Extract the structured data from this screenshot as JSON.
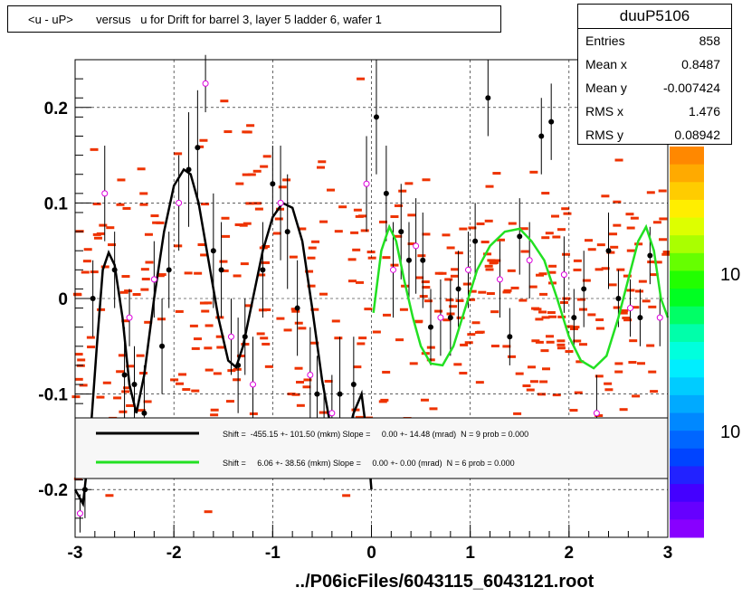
{
  "title": "<u - uP>       versus   u for Drift for barrel 3, layer 5 ladder 6, wafer 1",
  "footer_text": "../P06icFiles/6043115_6043121.root",
  "stats": {
    "name": "duuP5106",
    "rows": [
      {
        "label": "Entries",
        "value": "858"
      },
      {
        "label": "Mean x",
        "value": "0.8487"
      },
      {
        "label": "Mean y",
        "value": "-0.007424"
      },
      {
        "label": "RMS x",
        "value": "1.476"
      },
      {
        "label": "RMS y",
        "value": "0.08942"
      }
    ]
  },
  "colors": {
    "fit_black": "#000000",
    "fit_green": "#22e022",
    "hist_red": "#ee3300",
    "profile_magenta": "#dd00dd",
    "grid": "#000000"
  },
  "chart_data": {
    "type": "scatter",
    "title": "<u - uP>       versus   u for Drift for barrel 3, layer 5 ladder 6, wafer 1",
    "xlim": [
      -3,
      3
    ],
    "ylim": [
      -0.25,
      0.25
    ],
    "x_ticks": [
      "-3",
      "-2",
      "-1",
      "0",
      "1",
      "2",
      "3"
    ],
    "y_ticks": [
      "-0.2",
      "-0.1",
      "0",
      "0.1",
      "0.2"
    ],
    "grid": true,
    "colorbar_labels": [
      "10",
      "10"
    ],
    "legend_entries": [
      {
        "text": "Shift =  -455.15 +- 101.50 (mkm) Slope =     0.00 +- 14.48 (mrad)  N = 9 prob = 0.000",
        "color": "#000000"
      },
      {
        "text": "Shift =     6.06 +- 38.56 (mkm) Slope =     0.00 +- 0.00 (mrad)  N = 6 prob = 0.000",
        "color": "#22e022"
      }
    ],
    "black_fit_points": [
      [
        -3.0,
        -0.2
      ],
      [
        -2.92,
        -0.215
      ],
      [
        -2.85,
        -0.15
      ],
      [
        -2.78,
        -0.05
      ],
      [
        -2.72,
        0.03
      ],
      [
        -2.66,
        0.048
      ],
      [
        -2.6,
        0.035
      ],
      [
        -2.52,
        -0.02
      ],
      [
        -2.45,
        -0.09
      ],
      [
        -2.38,
        -0.12
      ],
      [
        -2.3,
        -0.08
      ],
      [
        -2.2,
        0.0
      ],
      [
        -2.1,
        0.07
      ],
      [
        -2.0,
        0.118
      ],
      [
        -1.9,
        0.135
      ],
      [
        -1.83,
        0.13
      ],
      [
        -1.75,
        0.1
      ],
      [
        -1.65,
        0.04
      ],
      [
        -1.55,
        -0.02
      ],
      [
        -1.45,
        -0.065
      ],
      [
        -1.37,
        -0.072
      ],
      [
        -1.3,
        -0.05
      ],
      [
        -1.2,
        0.0
      ],
      [
        -1.1,
        0.05
      ],
      [
        -1.0,
        0.085
      ],
      [
        -0.9,
        0.1
      ],
      [
        -0.8,
        0.095
      ],
      [
        -0.7,
        0.06
      ],
      [
        -0.6,
        -0.01
      ],
      [
        -0.5,
        -0.085
      ],
      [
        -0.42,
        -0.13
      ],
      [
        -0.34,
        -0.155
      ],
      [
        -0.26,
        -0.15
      ],
      [
        -0.18,
        -0.12
      ],
      [
        -0.1,
        -0.1
      ],
      [
        -0.05,
        -0.14
      ],
      [
        0.0,
        -0.2
      ]
    ],
    "green_fit_points": [
      [
        0.02,
        -0.015
      ],
      [
        0.1,
        0.05
      ],
      [
        0.18,
        0.075
      ],
      [
        0.25,
        0.06
      ],
      [
        0.33,
        0.02
      ],
      [
        0.42,
        -0.02
      ],
      [
        0.5,
        -0.05
      ],
      [
        0.6,
        -0.068
      ],
      [
        0.72,
        -0.07
      ],
      [
        0.83,
        -0.05
      ],
      [
        0.95,
        -0.01
      ],
      [
        1.07,
        0.03
      ],
      [
        1.2,
        0.055
      ],
      [
        1.35,
        0.07
      ],
      [
        1.5,
        0.073
      ],
      [
        1.62,
        0.06
      ],
      [
        1.75,
        0.04
      ],
      [
        1.88,
        0.0
      ],
      [
        2.0,
        -0.04
      ],
      [
        2.12,
        -0.065
      ],
      [
        2.25,
        -0.073
      ],
      [
        2.38,
        -0.06
      ],
      [
        2.5,
        -0.02
      ],
      [
        2.6,
        0.02
      ],
      [
        2.7,
        0.06
      ],
      [
        2.78,
        0.075
      ],
      [
        2.86,
        0.05
      ],
      [
        2.93,
        0.0
      ],
      [
        3.0,
        -0.02
      ]
    ],
    "profile_points": [
      [
        -2.95,
        -0.225,
        0.02
      ],
      [
        -2.9,
        -0.2,
        0.03
      ],
      [
        -2.82,
        0.0,
        0.04
      ],
      [
        -2.7,
        0.11,
        0.05
      ],
      [
        -2.6,
        0.03,
        0.04
      ],
      [
        -2.5,
        -0.08,
        0.05
      ],
      [
        -2.45,
        -0.02,
        0.03
      ],
      [
        -2.4,
        -0.09,
        0.04
      ],
      [
        -2.3,
        -0.12,
        0.05
      ],
      [
        -2.2,
        0.02,
        0.04
      ],
      [
        -2.12,
        -0.05,
        0.05
      ],
      [
        -2.05,
        0.03,
        0.04
      ],
      [
        -1.95,
        0.1,
        0.05
      ],
      [
        -1.85,
        0.135,
        0.06
      ],
      [
        -1.76,
        0.158,
        0.06
      ],
      [
        -1.68,
        0.225,
        0.03
      ],
      [
        -1.6,
        0.05,
        0.06
      ],
      [
        -1.52,
        0.03,
        0.05
      ],
      [
        -1.42,
        -0.04,
        0.04
      ],
      [
        -1.35,
        -0.07,
        0.05
      ],
      [
        -1.28,
        -0.04,
        0.04
      ],
      [
        -1.2,
        -0.09,
        0.05
      ],
      [
        -1.1,
        0.03,
        0.05
      ],
      [
        -1.0,
        0.12,
        0.04
      ],
      [
        -0.92,
        0.1,
        0.06
      ],
      [
        -0.85,
        0.07,
        0.06
      ],
      [
        -0.75,
        -0.01,
        0.05
      ],
      [
        -0.62,
        -0.08,
        0.05
      ],
      [
        -0.55,
        -0.1,
        0.04
      ],
      [
        -0.48,
        -0.14,
        0.05
      ],
      [
        -0.4,
        -0.12,
        0.04
      ],
      [
        -0.32,
        -0.1,
        0.06
      ],
      [
        -0.18,
        -0.09,
        0.05
      ],
      [
        -0.05,
        0.12,
        0.05
      ],
      [
        0.05,
        0.19,
        0.06
      ],
      [
        0.15,
        0.11,
        0.05
      ],
      [
        0.22,
        0.03,
        0.05
      ],
      [
        0.3,
        0.07,
        0.05
      ],
      [
        0.38,
        0.04,
        0.04
      ],
      [
        0.45,
        0.055,
        0.05
      ],
      [
        0.52,
        0.04,
        0.05
      ],
      [
        0.6,
        -0.03,
        0.04
      ],
      [
        0.7,
        -0.02,
        0.04
      ],
      [
        0.8,
        -0.02,
        0.04
      ],
      [
        0.88,
        0.01,
        0.04
      ],
      [
        0.98,
        0.03,
        0.04
      ],
      [
        1.05,
        0.06,
        0.04
      ],
      [
        1.18,
        0.21,
        0.04
      ],
      [
        1.3,
        0.02,
        0.04
      ],
      [
        1.4,
        -0.04,
        0.03
      ],
      [
        1.5,
        0.065,
        0.04
      ],
      [
        1.6,
        0.04,
        0.04
      ],
      [
        1.72,
        0.17,
        0.04
      ],
      [
        1.82,
        0.185,
        0.04
      ],
      [
        1.95,
        0.025,
        0.04
      ],
      [
        2.05,
        -0.02,
        0.03
      ],
      [
        2.15,
        0.01,
        0.04
      ],
      [
        2.28,
        -0.12,
        0.04
      ],
      [
        2.4,
        0.05,
        0.04
      ],
      [
        2.5,
        0.0,
        0.03
      ],
      [
        2.62,
        -0.01,
        0.03
      ],
      [
        2.72,
        -0.02,
        0.03
      ],
      [
        2.82,
        0.045,
        0.03
      ],
      [
        2.92,
        -0.02,
        0.03
      ]
    ]
  }
}
